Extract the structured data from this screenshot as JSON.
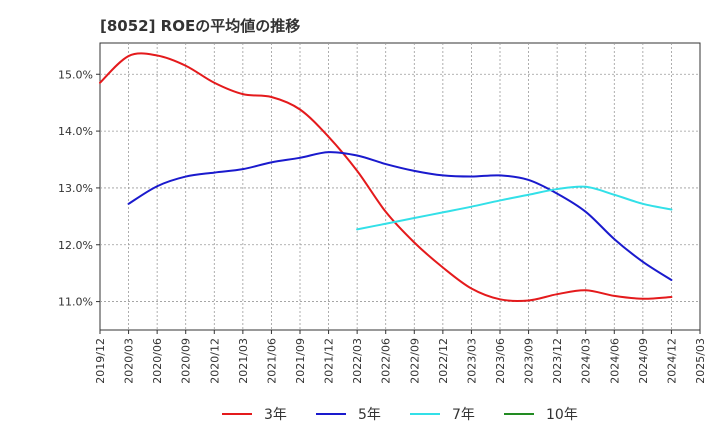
{
  "chart_data": {
    "type": "line",
    "title": "[8052]  ROEの平均値の推移",
    "xlabel": "",
    "ylabel": "",
    "categories": [
      "2019/12",
      "2020/03",
      "2020/06",
      "2020/09",
      "2020/12",
      "2021/03",
      "2021/06",
      "2021/09",
      "2021/12",
      "2022/03",
      "2022/06",
      "2022/09",
      "2022/12",
      "2023/03",
      "2023/06",
      "2023/09",
      "2023/12",
      "2024/03",
      "2024/06",
      "2024/09",
      "2024/12",
      "2025/03"
    ],
    "y_tick_labels": [
      "11.0%",
      "12.0%",
      "13.0%",
      "14.0%",
      "15.0%"
    ],
    "y_ticks": [
      11.0,
      12.0,
      13.0,
      14.0,
      15.0
    ],
    "ylim": [
      10.5,
      15.55
    ],
    "grid": true,
    "legend_position": "bottom",
    "series": [
      {
        "name": "3年",
        "color": "#e41a1c",
        "values": [
          14.85,
          15.32,
          15.33,
          15.15,
          14.85,
          14.65,
          14.6,
          14.38,
          13.9,
          13.3,
          12.58,
          12.04,
          11.6,
          11.23,
          11.04,
          11.02,
          11.13,
          11.2,
          11.1,
          11.05,
          11.08,
          null
        ]
      },
      {
        "name": "5年",
        "color": "#1a1acd",
        "values": [
          null,
          12.72,
          13.03,
          13.2,
          13.27,
          13.33,
          13.45,
          13.53,
          13.63,
          13.57,
          13.42,
          13.3,
          13.22,
          13.2,
          13.22,
          13.14,
          12.9,
          12.58,
          12.1,
          11.7,
          11.38,
          null
        ]
      },
      {
        "name": "7年",
        "color": "#33e0e8",
        "values": [
          null,
          null,
          null,
          null,
          null,
          null,
          null,
          null,
          null,
          12.27,
          12.37,
          12.47,
          12.57,
          12.67,
          12.78,
          12.88,
          12.98,
          13.02,
          12.88,
          12.72,
          12.62,
          null
        ]
      },
      {
        "name": "10年",
        "color": "#228b22",
        "values": [
          null,
          null,
          null,
          null,
          null,
          null,
          null,
          null,
          null,
          null,
          null,
          null,
          null,
          null,
          null,
          null,
          null,
          null,
          null,
          null,
          null,
          null
        ]
      }
    ]
  }
}
